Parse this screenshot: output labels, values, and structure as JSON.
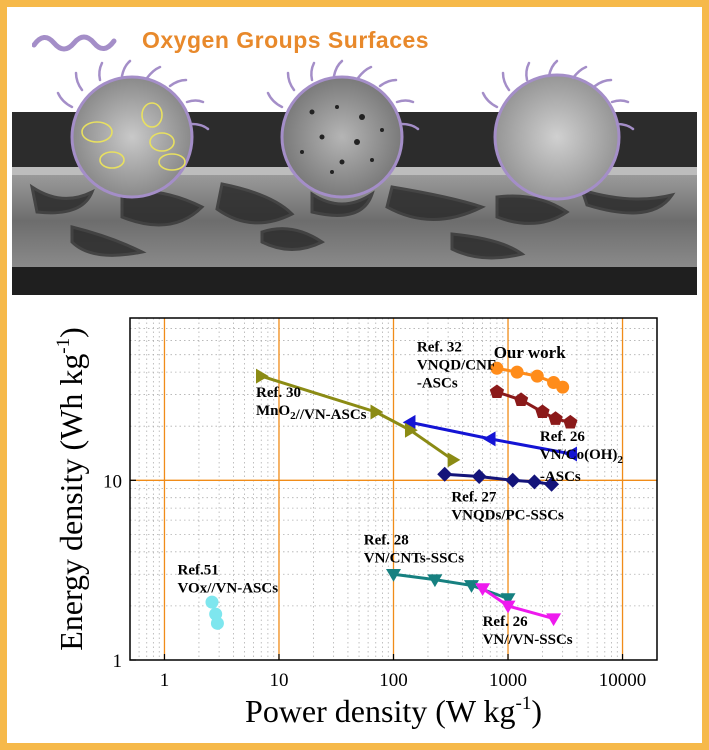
{
  "legend": {
    "label": "Oxygen Groups Surfaces"
  },
  "colors": {
    "frame_border": "#f6b94a",
    "legend_text": "#e8892b",
    "wave": "#a48ec8",
    "grid_major": "#f08c19",
    "grid_minor": "#b0b0b0"
  },
  "chart_data": {
    "type": "line",
    "xlabel": "Power density (W kg-1)",
    "ylabel": "Energy density (Wh kg-1)",
    "xscale": "log",
    "yscale": "log",
    "xlim": [
      0.5,
      20000
    ],
    "ylim": [
      1,
      80
    ],
    "x_ticks": [
      1,
      10,
      100,
      1000,
      10000
    ],
    "x_tick_labels": [
      "1",
      "10",
      "100",
      "1000",
      "10000"
    ],
    "y_ticks": [
      1,
      10
    ],
    "y_tick_labels": [
      "1",
      "10"
    ],
    "grid": true,
    "series": [
      {
        "name": "Our work",
        "color": "#ff8c1a",
        "marker": "circle",
        "x": [
          800,
          1200,
          1800,
          2500,
          3000
        ],
        "y": [
          42,
          40,
          38,
          35,
          33
        ]
      },
      {
        "name": "Ref. 32 VNQD/CNF -ASCs",
        "color": "#8b1a1a",
        "marker": "pentagon",
        "x": [
          800,
          1300,
          2000,
          2600,
          3500
        ],
        "y": [
          31,
          28,
          24,
          22,
          21
        ]
      },
      {
        "name": "Ref. 26 VN/Co(OH)2 -ASCs",
        "color": "#1414d4",
        "marker": "triangle-left",
        "x": [
          3600,
          700,
          140
        ],
        "y": [
          14,
          17,
          21
        ]
      },
      {
        "name": "Ref. 30 MnO2//VN-ASCs",
        "color": "#8b8b14",
        "marker": "triangle-right",
        "x": [
          7,
          70,
          140,
          330
        ],
        "y": [
          38,
          24,
          19,
          13
        ]
      },
      {
        "name": "Ref. 27 VNQDs/PC-SSCs",
        "color": "#14147a",
        "marker": "diamond",
        "x": [
          280,
          560,
          1100,
          1700,
          2400
        ],
        "y": [
          10.8,
          10.5,
          10.0,
          9.8,
          9.5
        ]
      },
      {
        "name": "Ref. 28 VN/CNTs-SSCs",
        "color": "#168080",
        "marker": "triangle-down",
        "x": [
          100,
          230,
          480,
          1000
        ],
        "y": [
          3.0,
          2.8,
          2.6,
          2.2
        ]
      },
      {
        "name": "Ref. 26 VN//VN-SSCs",
        "color": "#ee1aee",
        "marker": "triangle-down",
        "x": [
          600,
          1000,
          2500
        ],
        "y": [
          2.5,
          2.0,
          1.7
        ]
      },
      {
        "name": "Ref.51 VOx//VN-ASCs",
        "color": "#7ee6ee",
        "marker": "circle",
        "x": [
          2.6,
          2.8,
          2.9
        ],
        "y": [
          2.1,
          1.8,
          1.6
        ]
      }
    ],
    "annotations": [
      {
        "line1": "Our work",
        "line2": "",
        "x": 750,
        "y": 48,
        "align": "start",
        "size": 17
      },
      {
        "line1": "Ref. 32",
        "line2": "VNQD/CNF",
        "line3": "-ASCs",
        "x": 160,
        "y": 52,
        "align": "start",
        "size": 15
      },
      {
        "line1": "Ref. 26",
        "line2": "VN/Co(OH)2",
        "line3": "-ASCs",
        "x": 1900,
        "y": 16.5,
        "align": "start",
        "size": 15
      },
      {
        "line1": "Ref. 30",
        "line2": "MnO2//VN-ASCs",
        "x": 6.3,
        "y": 29,
        "align": "start",
        "size": 15
      },
      {
        "line1": "Ref. 27",
        "line2": "VNQDs/PC-SSCs",
        "x": 320,
        "y": 7.6,
        "align": "start",
        "size": 15
      },
      {
        "line1": "Ref. 28",
        "line2": "VN/CNTs-SSCs",
        "x": 55,
        "y": 4.4,
        "align": "start",
        "size": 15
      },
      {
        "line1": "Ref.51",
        "line2": "VOx//VN-ASCs",
        "x": 1.3,
        "y": 3.0,
        "align": "start",
        "size": 15
      },
      {
        "line1": "Ref. 26",
        "line2": "VN//VN-SSCs",
        "x": 600,
        "y": 1.55,
        "align": "start",
        "size": 15
      }
    ]
  }
}
